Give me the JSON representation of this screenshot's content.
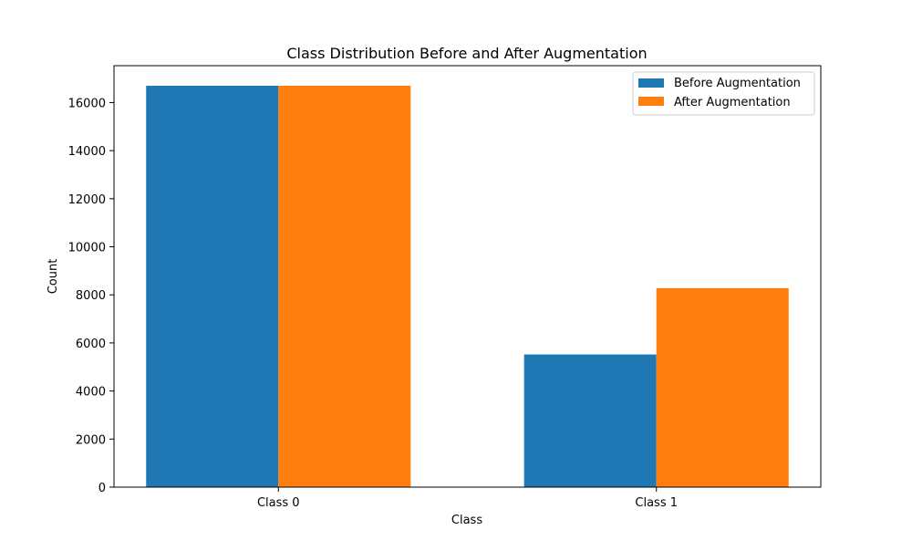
{
  "chart_data": {
    "type": "bar",
    "title": "Class Distribution Before and After Augmentation",
    "xlabel": "Class",
    "ylabel": "Count",
    "categories": [
      "Class 0",
      "Class 1"
    ],
    "series": [
      {
        "name": "Before Augmentation",
        "values": [
          16700,
          5520
        ],
        "color": "#1f77b4"
      },
      {
        "name": "After Augmentation",
        "values": [
          16700,
          8280
        ],
        "color": "#ff7f0e"
      }
    ],
    "ylim": [
      0,
      17535
    ],
    "yticks": [
      0,
      2000,
      4000,
      6000,
      8000,
      10000,
      12000,
      14000,
      16000
    ],
    "ytick_labels": [
      "0",
      "2000",
      "4000",
      "6000",
      "8000",
      "10000",
      "12000",
      "14000",
      "16000"
    ],
    "grid": false,
    "legend_position": "top-right"
  }
}
